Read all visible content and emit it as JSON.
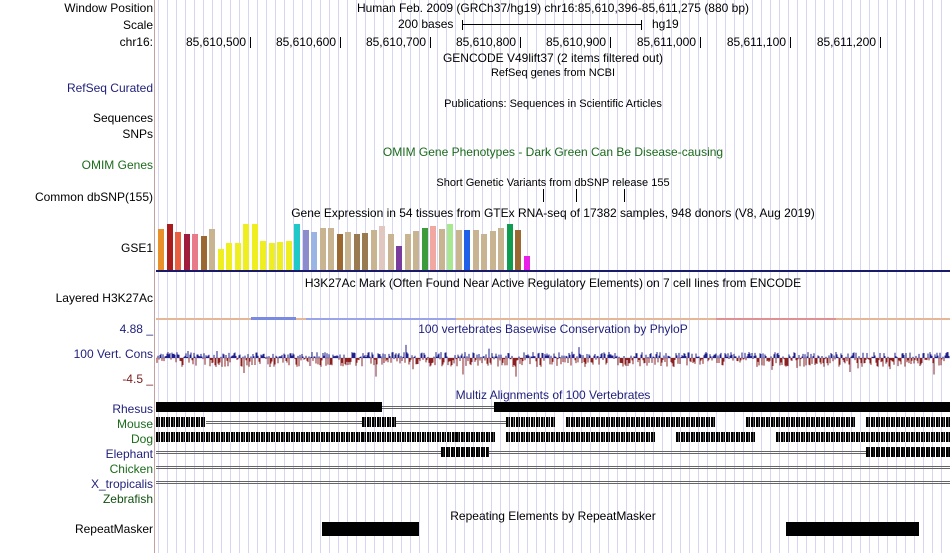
{
  "position": {
    "label": "Window Position",
    "text": "Human Feb. 2009 (GRCh37/hg19)   chr16:85,610,396-85,611,275 (880 bp)"
  },
  "scale": {
    "label": "Scale",
    "bases": "200 bases",
    "assembly": "hg19"
  },
  "ruler": {
    "label": "chr16:",
    "ticks": [
      "85,610,500",
      "85,610,600",
      "85,610,700",
      "85,610,800",
      "85,610,900",
      "85,611,000",
      "85,611,100",
      "85,611,200"
    ]
  },
  "tracks": {
    "gencode_title": "GENCODE V49lift37 (2 items filtered out)",
    "refseq_label": "RefSeq Curated",
    "refseq_title": "RefSeq genes from NCBI",
    "publications_title": "Publications: Sequences in Scientific Articles",
    "sequences_label": "Sequences",
    "snps_label": "SNPs",
    "omim_label": "OMIM Genes",
    "omim_title": "OMIM Gene Phenotypes - Dark Green Can Be Disease-causing",
    "dbsnp_title": "Short Genetic Variants from dbSNP release 155",
    "dbsnp_label": "Common dbSNP(155)",
    "gtex_title": "Gene Expression in 54 tissues from GTEx RNA-seq of 17382 samples, 948 donors (V8, Aug 2019)",
    "gtex_label": "GSE1",
    "h3k27ac_title": "H3K27Ac Mark (Often Found Near Active Regulatory Elements) on 7 cell lines from ENCODE",
    "h3k27ac_label": "Layered H3K27Ac",
    "phylop_title": "100 vertebrates Basewise Conservation by PhyloP",
    "phylop_label": "100 Vert. Cons",
    "phylop_max": "4.88 _",
    "phylop_min": "-4.5 _",
    "multiz_title": "Multiz Alignments of 100 Vertebrates",
    "species": [
      "Rhesus",
      "Mouse",
      "Dog",
      "Elephant",
      "Chicken",
      "X_tropicalis",
      "Zebrafish"
    ],
    "repeat_title": "Repeating Elements by RepeatMasker",
    "repeat_label": "RepeatMasker"
  },
  "gtex_bars": [
    {
      "h": 0.9,
      "c": "#e8902a"
    },
    {
      "h": 1.0,
      "c": "#aa1c1c"
    },
    {
      "h": 0.82,
      "c": "#e86040"
    },
    {
      "h": 0.78,
      "c": "#a01c3c"
    },
    {
      "h": 0.78,
      "c": "#e87a8a"
    },
    {
      "h": 0.74,
      "c": "#9a6830"
    },
    {
      "h": 0.9,
      "c": "#c8b490"
    },
    {
      "h": 0.46,
      "c": "#eeee20"
    },
    {
      "h": 0.58,
      "c": "#eeee20"
    },
    {
      "h": 0.58,
      "c": "#eeee20"
    },
    {
      "h": 1.0,
      "c": "#eeee20"
    },
    {
      "h": 1.0,
      "c": "#eeee20"
    },
    {
      "h": 0.62,
      "c": "#eeee20"
    },
    {
      "h": 0.58,
      "c": "#eeee20"
    },
    {
      "h": 0.6,
      "c": "#eeee20"
    },
    {
      "h": 0.62,
      "c": "#eeee20"
    },
    {
      "h": 1.0,
      "c": "#20c8c8"
    },
    {
      "h": 0.86,
      "c": "#8c8ccc"
    },
    {
      "h": 0.82,
      "c": "#9ab4e4"
    },
    {
      "h": 0.92,
      "c": "#c8b490"
    },
    {
      "h": 0.92,
      "c": "#c8b490"
    },
    {
      "h": 0.78,
      "c": "#9a6830"
    },
    {
      "h": 0.82,
      "c": "#c8b490"
    },
    {
      "h": 0.78,
      "c": "#9a7a50"
    },
    {
      "h": 0.8,
      "c": "#9a7a50"
    },
    {
      "h": 0.86,
      "c": "#c8b490"
    },
    {
      "h": 0.96,
      "c": "#e0c8c0"
    },
    {
      "h": 0.78,
      "c": "#c8b490"
    },
    {
      "h": 0.52,
      "c": "#7a3c9c"
    },
    {
      "h": 0.78,
      "c": "#c8b490"
    },
    {
      "h": 0.84,
      "c": "#c8b490"
    },
    {
      "h": 0.92,
      "c": "#3c9c3c"
    },
    {
      "h": 0.96,
      "c": "#f0a8a0"
    },
    {
      "h": 0.9,
      "c": "#c8b490"
    },
    {
      "h": 1.0,
      "c": "#a8e890"
    },
    {
      "h": 0.86,
      "c": "#c8b490"
    },
    {
      "h": 0.88,
      "c": "#2060e8"
    },
    {
      "h": 0.86,
      "c": "#c8b490"
    },
    {
      "h": 0.78,
      "c": "#c8b490"
    },
    {
      "h": 0.84,
      "c": "#c8b490"
    },
    {
      "h": 0.92,
      "c": "#c8b490"
    },
    {
      "h": 1.0,
      "c": "#109c50"
    },
    {
      "h": 0.88,
      "c": "#9a6830"
    },
    {
      "h": 0.3,
      "c": "#e820e8"
    }
  ]
}
